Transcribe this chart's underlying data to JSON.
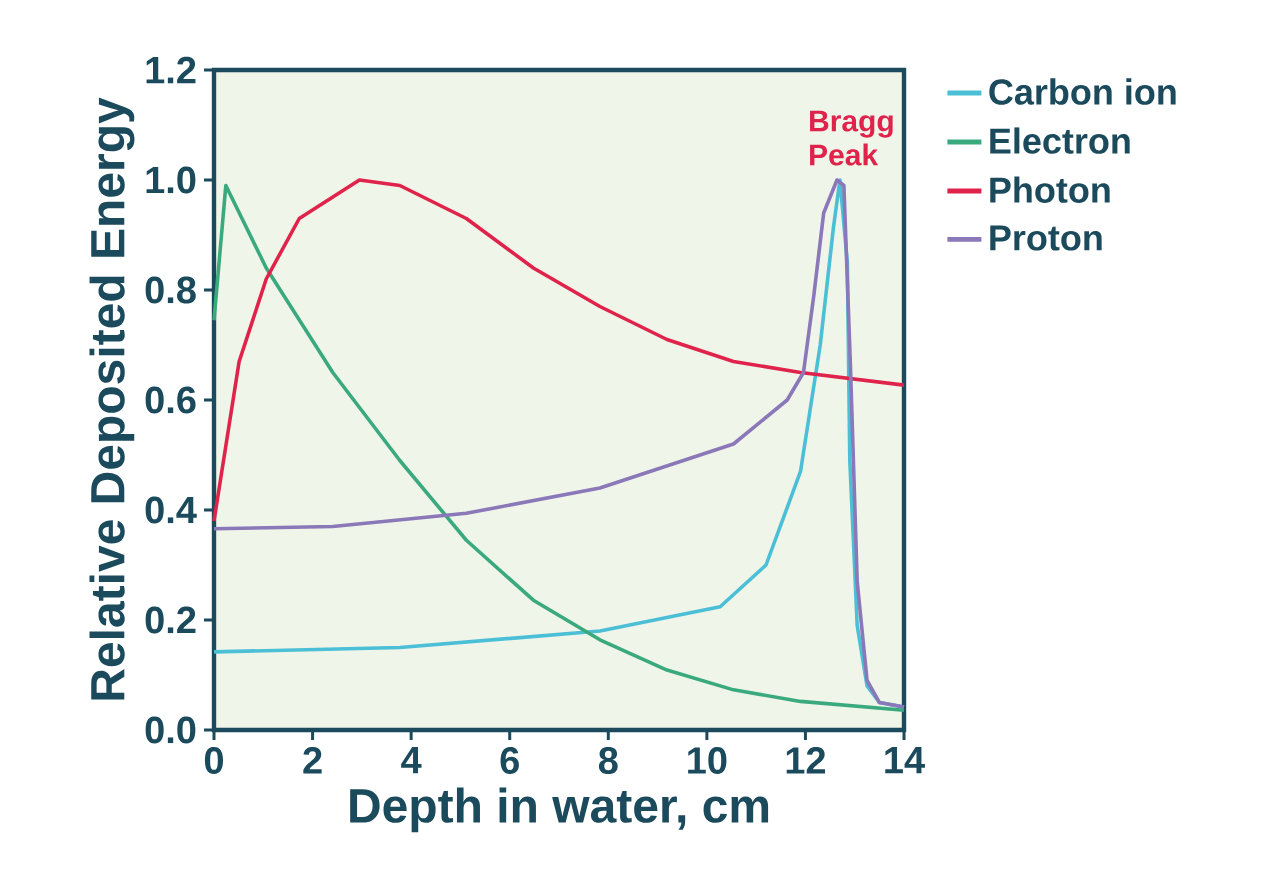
{
  "chart_data": {
    "type": "line",
    "xlabel": "Depth in water, cm",
    "ylabel": "Relative Deposited Energy",
    "xlim": [
      0,
      14
    ],
    "ylim": [
      0,
      1.2
    ],
    "xticks": [
      0,
      2,
      4,
      6,
      8,
      10,
      12,
      14
    ],
    "yticks": [
      {
        "value": 0,
        "label": "0.0"
      },
      {
        "value": 0.2,
        "label": "0.2"
      },
      {
        "value": 0.4,
        "label": "0.4"
      },
      {
        "value": 0.6,
        "label": "0.6"
      },
      {
        "value": 0.8,
        "label": "0.8"
      },
      {
        "value": 1.0,
        "label": "1.0"
      },
      {
        "value": 1.2,
        "label": "1.2"
      }
    ],
    "legend": "right",
    "grid": false,
    "marker": "none",
    "line_style": "solid",
    "annotations": [
      {
        "text": "Bragg Peak",
        "x": 12.7,
        "y": 1.0
      }
    ],
    "series": [
      {
        "name": "Carbon ion",
        "color": "#4bbfd6",
        "x": [
          0,
          3.77,
          7.83,
          10.27,
          11.2,
          11.9,
          12.3,
          12.57,
          12.7,
          12.85,
          12.9,
          13.05,
          13.25,
          13.5,
          14
        ],
        "values": [
          0.142,
          0.15,
          0.18,
          0.224,
          0.3,
          0.47,
          0.7,
          0.915,
          1.0,
          0.85,
          0.49,
          0.19,
          0.08,
          0.05,
          0.042
        ]
      },
      {
        "name": "Electron",
        "color": "#3aaa7e",
        "x": [
          0,
          0.24,
          1.06,
          2.41,
          3.77,
          5.12,
          6.48,
          7.83,
          9.19,
          10.54,
          11.9,
          14
        ],
        "values": [
          0.745,
          0.99,
          0.84,
          0.65,
          0.49,
          0.345,
          0.236,
          0.164,
          0.109,
          0.073,
          0.052,
          0.036
        ]
      },
      {
        "name": "Photon",
        "color": "#e0234a",
        "x": [
          0,
          0.51,
          1.06,
          1.73,
          2.95,
          3.77,
          5.12,
          6.48,
          7.83,
          9.19,
          10.54,
          11.9,
          14
        ],
        "values": [
          0.38,
          0.67,
          0.82,
          0.93,
          1.0,
          0.99,
          0.93,
          0.84,
          0.77,
          0.71,
          0.67,
          0.65,
          0.627
        ]
      },
      {
        "name": "Proton",
        "color": "#8a78b8",
        "x": [
          0,
          2.41,
          5.12,
          7.83,
          10.54,
          11.63,
          11.96,
          12.17,
          12.37,
          12.64,
          12.78,
          12.91,
          13.05,
          13.25,
          13.5,
          14
        ],
        "values": [
          0.366,
          0.37,
          0.394,
          0.44,
          0.52,
          0.6,
          0.65,
          0.79,
          0.94,
          1.0,
          0.99,
          0.67,
          0.27,
          0.09,
          0.05,
          0.042
        ]
      }
    ]
  }
}
